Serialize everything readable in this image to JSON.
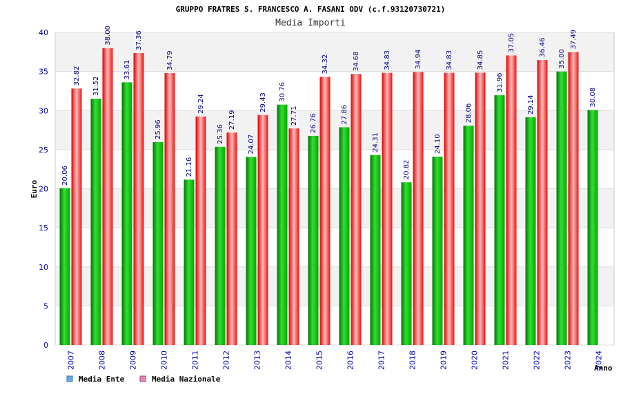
{
  "chart_data": {
    "type": "bar",
    "title": "GRUPPO FRATRES S. FRANCESCO A. FASANI ODV (c.f.93120730721)",
    "subtitle": "Media Importi",
    "xlabel": "Anno",
    "ylabel": "Euro",
    "ylim": [
      0,
      40
    ],
    "yticks": [
      0,
      5,
      10,
      15,
      20,
      25,
      30,
      35,
      40
    ],
    "grid": true,
    "legend_position": "bottom-left",
    "categories": [
      "2007",
      "2008",
      "2009",
      "2010",
      "2011",
      "2012",
      "2013",
      "2014",
      "2015",
      "2016",
      "2017",
      "2018",
      "2019",
      "2020",
      "2021",
      "2022",
      "2023",
      "2024"
    ],
    "series": [
      {
        "name": "Media Ente",
        "color": "#00bb00",
        "legend_color": "#66aaee",
        "values": [
          20.06,
          31.52,
          33.61,
          25.96,
          21.16,
          25.36,
          24.07,
          30.76,
          26.76,
          27.86,
          24.31,
          20.82,
          24.1,
          28.06,
          31.96,
          29.14,
          35.0,
          30.08
        ],
        "labels": [
          "20.06",
          "31.52",
          "33.61",
          "25.96",
          "21.16",
          "25.36",
          "24.07",
          "30.76",
          "26.76",
          "27.86",
          "24.31",
          "20.82",
          "24.10",
          "28.06",
          "31.96",
          "29.14",
          "35.00",
          "30.08"
        ]
      },
      {
        "name": "Media Nazionale",
        "color": "#ee2222",
        "legend_color": "#dd88bb",
        "values": [
          32.82,
          38.0,
          37.36,
          34.79,
          29.24,
          27.19,
          29.43,
          27.71,
          34.32,
          34.68,
          34.83,
          34.94,
          34.83,
          34.85,
          37.05,
          36.46,
          37.49,
          null
        ],
        "labels": [
          "32.82",
          "38.00",
          "37.36",
          "34.79",
          "29.24",
          "27.19",
          "29.43",
          "27.71",
          "34.32",
          "34.68",
          "34.83",
          "34.94",
          "34.83",
          "34.85",
          "37.05",
          "36.46",
          "37.49",
          null
        ]
      }
    ]
  }
}
